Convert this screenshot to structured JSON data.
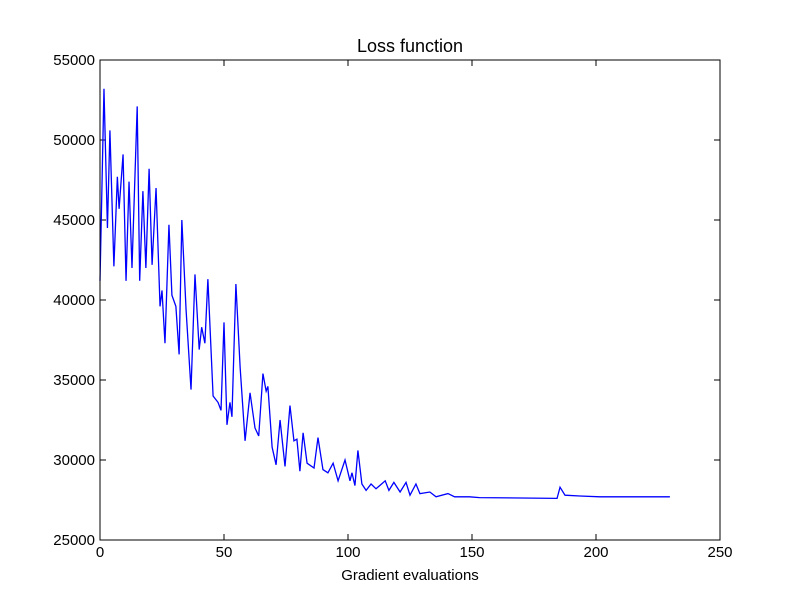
{
  "chart_data": {
    "type": "line",
    "title": "Loss function",
    "x_label": "Gradient evaluations",
    "xlim": [
      0,
      250
    ],
    "xticks": [
      0,
      50,
      100,
      150,
      200,
      250
    ],
    "ylim": [
      25000,
      55000
    ],
    "yticks": [
      25000,
      30000,
      35000,
      40000,
      45000,
      50000,
      55000
    ],
    "grid": false,
    "series": [
      {
        "color": "#0000ff",
        "x": [
          0,
          1.6,
          3,
          4,
          5.6,
          7,
          7.7,
          9.3,
          10.5,
          11.7,
          12.9,
          15,
          16,
          17.3,
          18.5,
          19.8,
          21,
          22.6,
          24.2,
          25,
          26.2,
          27.8,
          29,
          30.6,
          31.9,
          33,
          34.7,
          36.7,
          38.3,
          40,
          41,
          42.3,
          43.5,
          45.6,
          47.6,
          48.8,
          50,
          51.2,
          52.4,
          53.2,
          54.8,
          56.5,
          58.5,
          60.5,
          62.5,
          64,
          65.7,
          67,
          67.7,
          69.4,
          71,
          72.6,
          74.6,
          76.6,
          78.2,
          79.4,
          80.6,
          81.9,
          83.5,
          86.3,
          87.9,
          89.9,
          91.9,
          94,
          96,
          98.8,
          100.8,
          101.6,
          102.8,
          104,
          105.6,
          107.3,
          109.3,
          111.3,
          115,
          116.5,
          118.5,
          121,
          123.4,
          125,
          127.4,
          129,
          133,
          135.5,
          140.3,
          143,
          149,
          153,
          184.3,
          185.5,
          187.5,
          193.5,
          201.6,
          217.7,
          229.8
        ],
        "values": [
          41200,
          53200,
          44500,
          50600,
          42100,
          47700,
          45700,
          49100,
          41200,
          47400,
          42000,
          52100,
          41200,
          46800,
          42000,
          48200,
          42200,
          47000,
          39600,
          40600,
          37300,
          44700,
          40300,
          39600,
          36600,
          45000,
          39400,
          34400,
          41600,
          36900,
          38300,
          37300,
          41300,
          34000,
          33600,
          33100,
          38600,
          32200,
          33600,
          32700,
          41000,
          35800,
          31200,
          34200,
          32000,
          31500,
          35400,
          34300,
          34600,
          30800,
          29700,
          32500,
          29600,
          33400,
          31200,
          31300,
          29300,
          31700,
          29800,
          29500,
          31400,
          29400,
          29200,
          29800,
          28700,
          30000,
          28700,
          29200,
          28400,
          30600,
          28500,
          28100,
          28500,
          28200,
          28700,
          28100,
          28600,
          28000,
          28600,
          27800,
          28500,
          27900,
          28000,
          27700,
          27900,
          27700,
          27700,
          27650,
          27600,
          28300,
          27800,
          27750,
          27700,
          27700,
          27700
        ]
      }
    ]
  }
}
